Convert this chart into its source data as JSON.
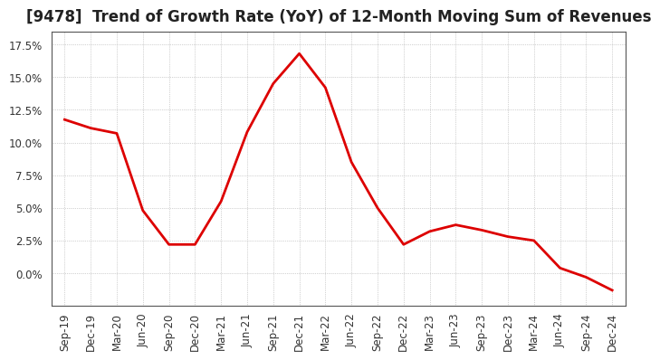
{
  "title": "[9478]  Trend of Growth Rate (YoY) of 12-Month Moving Sum of Revenues",
  "x_labels": [
    "Sep-19",
    "Dec-19",
    "Mar-20",
    "Jun-20",
    "Sep-20",
    "Dec-20",
    "Mar-21",
    "Jun-21",
    "Sep-21",
    "Dec-21",
    "Mar-22",
    "Jun-22",
    "Sep-22",
    "Dec-22",
    "Mar-23",
    "Jun-23",
    "Sep-23",
    "Dec-23",
    "Mar-24",
    "Jun-24",
    "Sep-24",
    "Dec-24"
  ],
  "y_values": [
    0.1175,
    0.111,
    0.107,
    0.048,
    0.022,
    0.022,
    0.055,
    0.108,
    0.145,
    0.168,
    0.142,
    0.085,
    0.05,
    0.022,
    0.032,
    0.037,
    0.033,
    0.028,
    0.025,
    0.004,
    -0.003,
    -0.013
  ],
  "line_color": "#dd0000",
  "background_color": "#ffffff",
  "grid_color": "#aaaaaa",
  "ylim": [
    -0.025,
    0.185
  ],
  "yticks": [
    0.0,
    0.025,
    0.05,
    0.075,
    0.1,
    0.125,
    0.15,
    0.175
  ],
  "title_fontsize": 12,
  "tick_fontsize": 8.5
}
